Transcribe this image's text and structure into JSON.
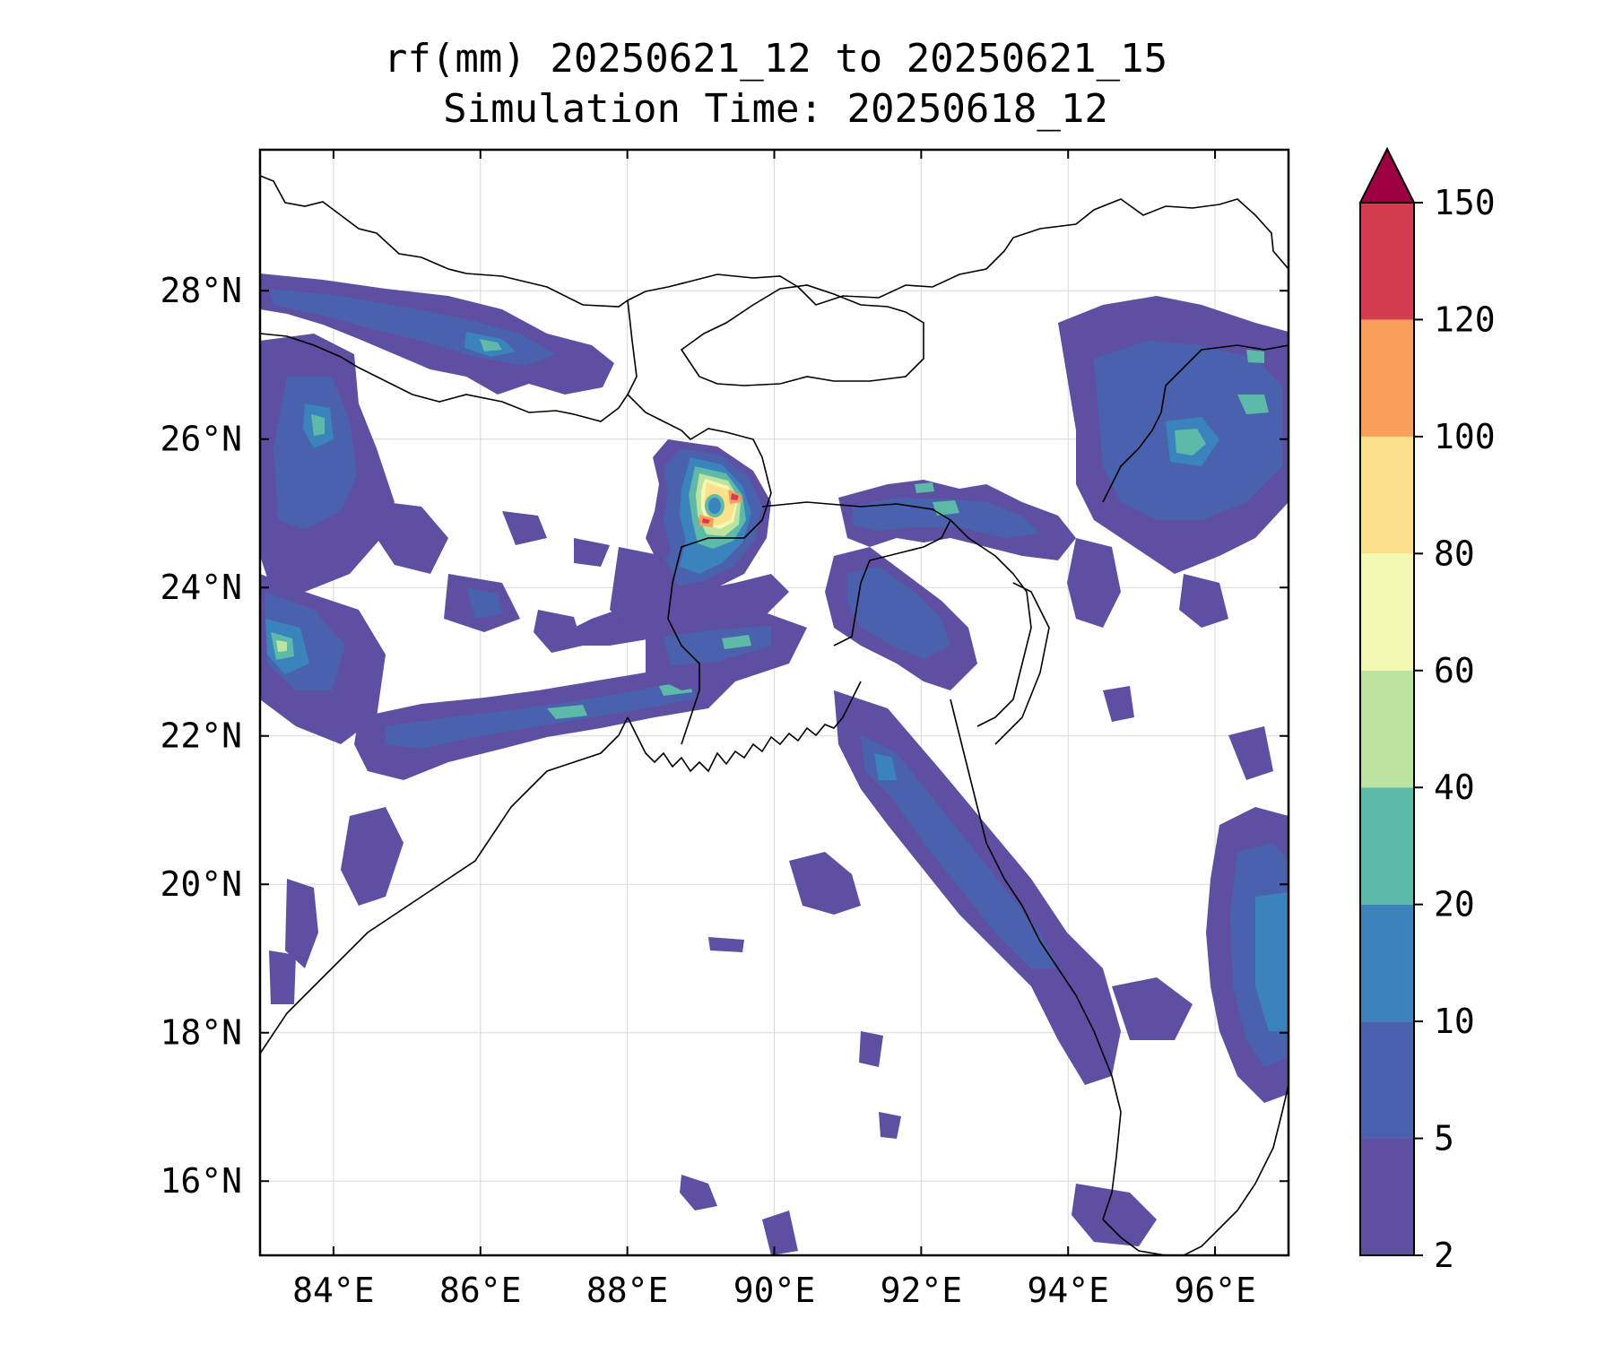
{
  "title": {
    "line1": "rf(mm) 20250621_12 to 20250621_15",
    "line2": "Simulation Time: 20250618_12"
  },
  "map": {
    "lon_range": [
      83.0,
      97.0
    ],
    "lat_range": [
      15.0,
      29.9
    ],
    "lon_ticks": [
      {
        "value": 84,
        "label": "84°E"
      },
      {
        "value": 86,
        "label": "86°E"
      },
      {
        "value": 88,
        "label": "88°E"
      },
      {
        "value": 90,
        "label": "90°E"
      },
      {
        "value": 92,
        "label": "92°E"
      },
      {
        "value": 94,
        "label": "94°E"
      },
      {
        "value": 96,
        "label": "96°E"
      }
    ],
    "lat_ticks": [
      {
        "value": 16,
        "label": "16°N"
      },
      {
        "value": 18,
        "label": "18°N"
      },
      {
        "value": 20,
        "label": "20°N"
      },
      {
        "value": 22,
        "label": "22°N"
      },
      {
        "value": 24,
        "label": "24°N"
      },
      {
        "value": 26,
        "label": "26°N"
      },
      {
        "value": 28,
        "label": "28°N"
      }
    ],
    "gridlines": true,
    "storm_center": {
      "lon": 89.2,
      "lat": 25.2
    }
  },
  "colorbar": {
    "levels": [
      {
        "label": "2",
        "color": "#5e4fa2"
      },
      {
        "label": "5",
        "color": "#4a62ad"
      },
      {
        "label": "10",
        "color": "#3b83bd"
      },
      {
        "label": "20",
        "color": "#5ebaa8"
      },
      {
        "label": "40",
        "color": "#bde3a0"
      },
      {
        "label": "60",
        "color": "#f3f9b0"
      },
      {
        "label": "80",
        "color": "#fde08b"
      },
      {
        "label": "100",
        "color": "#f99d5a"
      },
      {
        "label": "120",
        "color": "#d43d4f"
      },
      {
        "label": "150",
        "color": "#9e0142"
      }
    ],
    "extend": "max"
  }
}
